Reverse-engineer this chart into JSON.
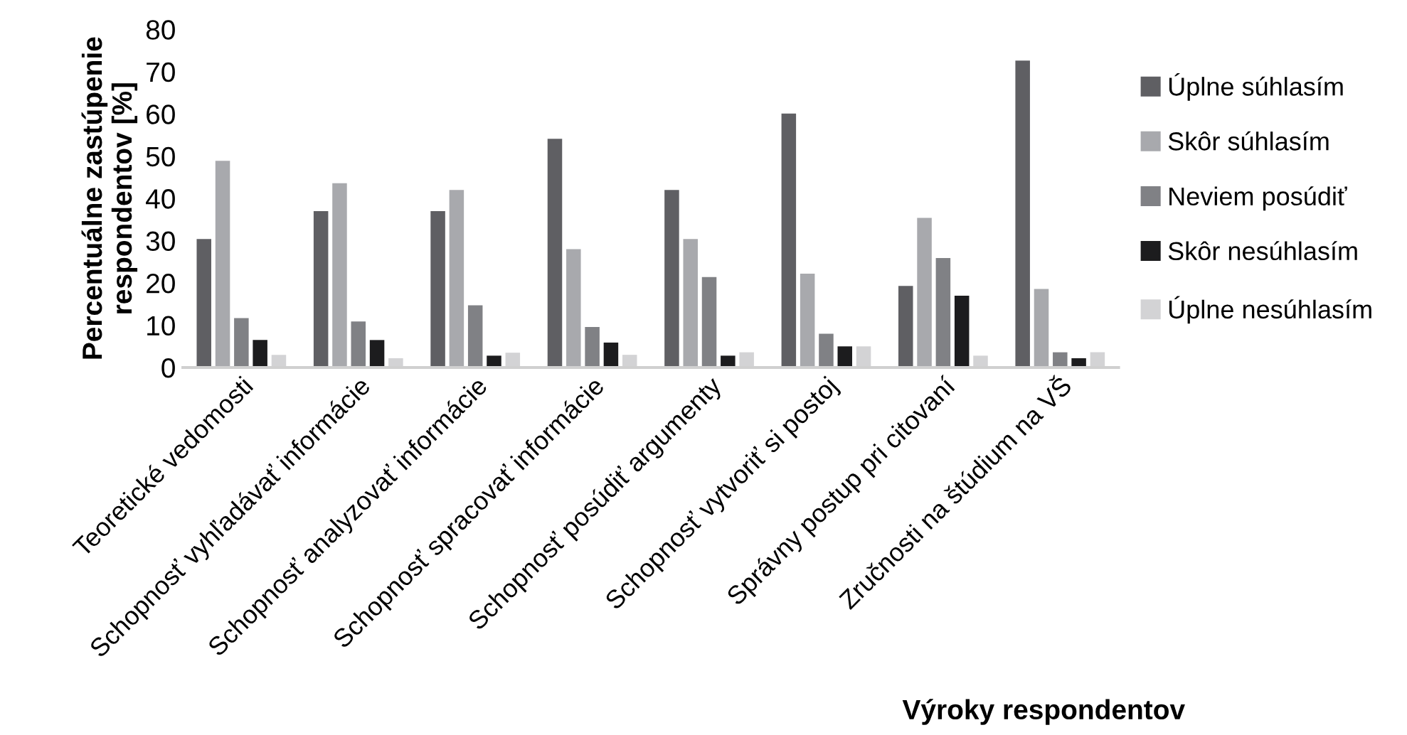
{
  "chart_data": {
    "type": "bar",
    "xlabel": "Výroky respondentov",
    "ylabel": "Percentuálne zastúpenie\nrespondentov [%]",
    "categories": [
      "Teoretické vedomosti",
      "Schopnosť vyhľadávať informácie",
      "Schopnosť analyzovať informácie",
      "Schopnosť spracovať informácie",
      "Schopnosť posúdiť argumenty",
      "Schopnosť vytvoriť si postoj",
      "Správny postup pri citovaní",
      "Zručnosti na štúdium na VŠ"
    ],
    "series": [
      {
        "name": "Úplne súhlasím",
        "color": "#5f5f63",
        "values": [
          30.4,
          37.0,
          37.0,
          54.1,
          42.0,
          60.1,
          19.3,
          72.6
        ]
      },
      {
        "name": "Skôr súhlasím",
        "color": "#a8a9ad",
        "values": [
          48.9,
          43.6,
          42.0,
          28.0,
          30.4,
          22.2,
          35.4,
          18.6
        ]
      },
      {
        "name": "Neviem posúdiť",
        "color": "#808185",
        "values": [
          11.7,
          10.9,
          14.7,
          9.6,
          21.4,
          8.0,
          25.9,
          3.6
        ]
      },
      {
        "name": "Skôr nesúhlasím",
        "color": "#1c1c1e",
        "values": [
          6.5,
          6.5,
          2.8,
          5.9,
          2.8,
          5.0,
          17.0,
          2.2
        ]
      },
      {
        "name": "Úplne nesúhlasím",
        "color": "#d3d3d5",
        "values": [
          3.0,
          2.2,
          3.5,
          3.0,
          3.6,
          5.0,
          2.8,
          3.6
        ]
      }
    ],
    "ylim": [
      0,
      80
    ],
    "yticks": [
      0,
      10,
      20,
      30,
      40,
      50,
      60,
      70,
      80
    ],
    "grid": false,
    "legend": "right"
  }
}
